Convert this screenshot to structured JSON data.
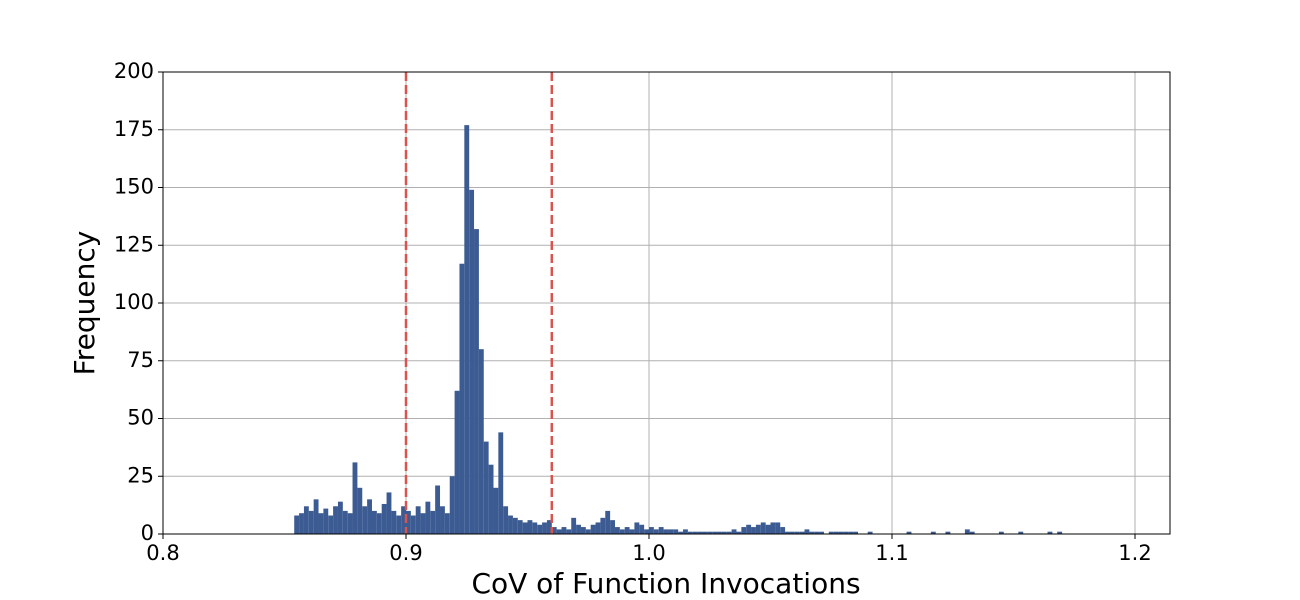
{
  "chart_data": {
    "type": "histogram",
    "xlabel": "CoV of Function Invocations",
    "ylabel": "Frequency",
    "color": "#3b5b92",
    "bins": [
      0.854,
      0.856,
      0.858,
      0.86,
      0.862,
      0.864,
      0.866,
      0.868,
      0.87,
      0.872,
      0.874,
      0.876,
      0.878,
      0.88,
      0.882,
      0.884,
      0.886,
      0.888,
      0.89,
      0.892,
      0.894,
      0.896,
      0.898,
      0.9,
      0.902,
      0.904,
      0.906,
      0.908,
      0.91,
      0.912,
      0.914,
      0.916,
      0.918,
      0.92,
      0.922,
      0.924,
      0.926,
      0.928,
      0.93,
      0.932,
      0.934,
      0.936,
      0.938,
      0.94,
      0.942,
      0.944,
      0.946,
      0.948,
      0.95,
      0.952,
      0.954,
      0.956,
      0.958,
      0.96,
      0.962,
      0.964,
      0.966,
      0.968,
      0.97,
      0.972,
      0.974,
      0.976,
      0.978,
      0.98,
      0.982,
      0.984,
      0.986,
      0.988,
      0.99,
      0.992,
      0.994,
      0.996,
      0.998,
      1.0,
      1.002,
      1.004,
      1.006,
      1.008,
      1.01,
      1.012,
      1.014,
      1.016,
      1.018,
      1.02,
      1.022,
      1.024,
      1.026,
      1.028,
      1.03,
      1.032,
      1.034,
      1.036,
      1.038,
      1.04,
      1.042,
      1.044,
      1.046,
      1.048,
      1.05,
      1.052,
      1.054,
      1.056,
      1.058,
      1.06,
      1.062,
      1.064,
      1.066,
      1.068,
      1.07,
      1.072,
      1.074,
      1.076,
      1.078,
      1.08,
      1.082,
      1.084,
      1.086,
      1.088,
      1.09,
      1.092,
      1.094,
      1.096,
      1.098,
      1.1,
      1.102,
      1.104,
      1.106,
      1.108,
      1.11,
      1.112,
      1.114,
      1.116,
      1.118,
      1.12,
      1.122,
      1.124,
      1.126,
      1.128,
      1.13,
      1.132,
      1.134,
      1.136,
      1.138,
      1.14,
      1.142,
      1.144,
      1.146,
      1.148,
      1.15,
      1.152,
      1.154,
      1.156,
      1.158,
      1.16,
      1.162,
      1.164,
      1.166,
      1.168,
      1.17
    ],
    "counts": [
      8,
      9,
      12,
      10,
      15,
      9,
      11,
      8,
      12,
      14,
      10,
      9,
      31,
      20,
      12,
      15,
      10,
      9,
      13,
      18,
      10,
      8,
      12,
      10,
      8,
      12,
      9,
      14,
      10,
      21,
      12,
      9,
      25,
      62,
      117,
      177,
      149,
      132,
      80,
      40,
      30,
      20,
      44,
      12,
      8,
      7,
      6,
      5,
      6,
      5,
      4,
      5,
      6,
      3,
      2,
      3,
      2,
      7,
      4,
      3,
      2,
      4,
      5,
      7,
      10,
      6,
      3,
      2,
      3,
      2,
      5,
      4,
      2,
      3,
      2,
      3,
      2,
      2,
      2,
      1,
      2,
      1,
      1,
      1,
      1,
      1,
      1,
      1,
      1,
      1,
      2,
      1,
      3,
      4,
      3,
      4,
      5,
      4,
      5,
      5,
      3,
      1,
      1,
      1,
      1,
      2,
      1,
      1,
      1,
      0,
      1,
      1,
      1,
      1,
      1,
      1,
      0,
      0,
      1,
      0,
      0,
      0,
      0,
      0,
      0,
      0,
      1,
      0,
      0,
      0,
      0,
      1,
      0,
      0,
      1,
      0,
      0,
      0,
      2,
      1,
      0,
      0,
      0,
      0,
      0,
      1,
      0,
      0,
      0,
      1,
      0,
      0,
      0,
      0,
      0,
      1,
      0,
      1
    ],
    "vlines": [
      0.9,
      0.96
    ],
    "vline_color": "#d9534f",
    "xlim": [
      0.8,
      1.2144
    ],
    "ylim": [
      0,
      200
    ],
    "xticks": [
      0.8,
      0.9,
      {
        "value": 1,
        "label": "1.0"
      },
      1.1,
      1.2
    ],
    "yticks": [
      0,
      25,
      50,
      75,
      100,
      125,
      150,
      175,
      200
    ],
    "grid": true
  }
}
